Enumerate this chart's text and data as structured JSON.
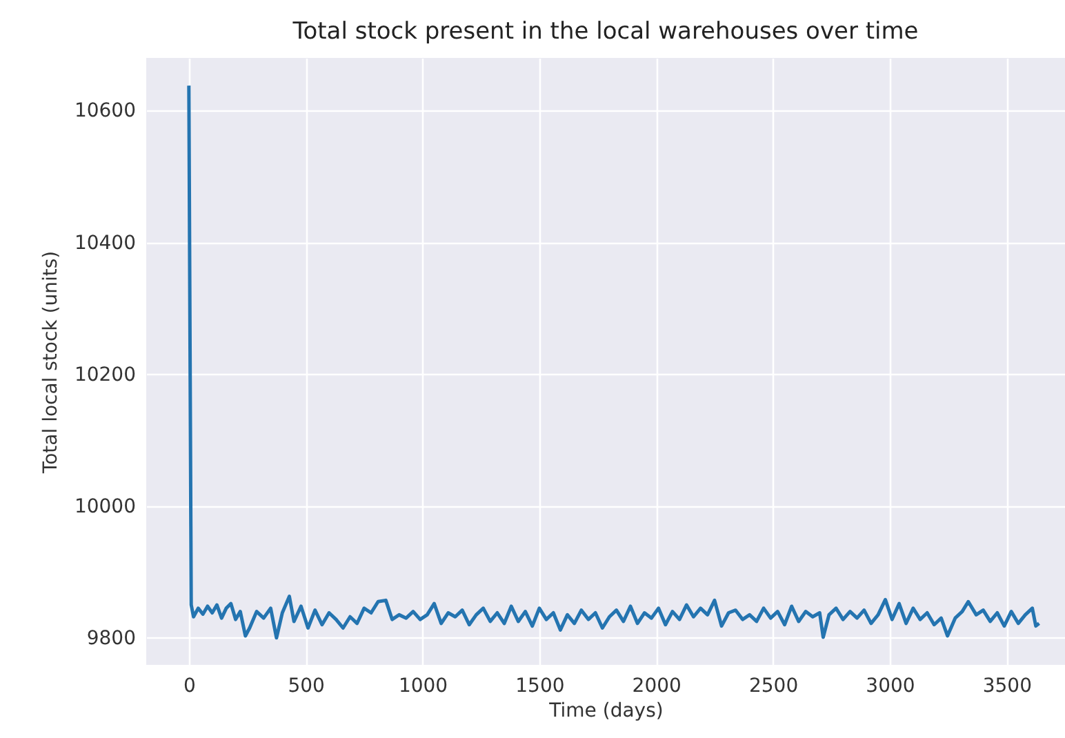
{
  "chart_data": {
    "type": "line",
    "title": "Total stock present in the local warehouses over time",
    "xlabel": "Time (days)",
    "ylabel": "Total local stock (units)",
    "x": [
      0,
      10,
      20,
      40,
      60,
      80,
      100,
      120,
      140,
      160,
      180,
      200,
      220,
      242,
      260,
      290,
      320,
      350,
      375,
      400,
      430,
      450,
      480,
      510,
      540,
      570,
      600,
      630,
      660,
      690,
      720,
      750,
      780,
      810,
      843,
      870,
      900,
      930,
      960,
      990,
      1020,
      1050,
      1080,
      1110,
      1140,
      1170,
      1200,
      1230,
      1260,
      1290,
      1320,
      1350,
      1380,
      1410,
      1440,
      1470,
      1500,
      1530,
      1560,
      1590,
      1620,
      1650,
      1680,
      1710,
      1740,
      1770,
      1800,
      1830,
      1860,
      1890,
      1920,
      1950,
      1980,
      2010,
      2040,
      2070,
      2100,
      2130,
      2160,
      2190,
      2220,
      2250,
      2280,
      2310,
      2340,
      2370,
      2400,
      2430,
      2460,
      2490,
      2520,
      2550,
      2580,
      2610,
      2640,
      2670,
      2700,
      2715,
      2740,
      2770,
      2800,
      2830,
      2860,
      2890,
      2920,
      2950,
      2981,
      3010,
      3040,
      3070,
      3100,
      3130,
      3160,
      3190,
      3220,
      3247,
      3280,
      3310,
      3336,
      3370,
      3400,
      3430,
      3460,
      3490,
      3520,
      3550,
      3580,
      3610,
      3625,
      3639
    ],
    "series": [
      {
        "color": "#2474b0",
        "values": [
          10638,
          9850,
          9832,
          9845,
          9836,
          9848,
          9838,
          9850,
          9830,
          9845,
          9852,
          9828,
          9840,
          9803,
          9815,
          9840,
          9830,
          9845,
          9800,
          9838,
          9863,
          9825,
          9848,
          9815,
          9842,
          9820,
          9838,
          9828,
          9815,
          9832,
          9822,
          9845,
          9838,
          9855,
          9857,
          9828,
          9835,
          9830,
          9840,
          9828,
          9835,
          9852,
          9822,
          9838,
          9832,
          9842,
          9820,
          9835,
          9845,
          9825,
          9838,
          9822,
          9848,
          9825,
          9840,
          9818,
          9845,
          9828,
          9838,
          9812,
          9835,
          9822,
          9842,
          9828,
          9838,
          9815,
          9832,
          9842,
          9825,
          9848,
          9822,
          9838,
          9830,
          9845,
          9820,
          9840,
          9828,
          9850,
          9832,
          9845,
          9835,
          9857,
          9818,
          9838,
          9842,
          9828,
          9835,
          9825,
          9845,
          9830,
          9840,
          9820,
          9848,
          9825,
          9840,
          9832,
          9838,
          9801,
          9835,
          9845,
          9828,
          9840,
          9830,
          9842,
          9822,
          9835,
          9858,
          9828,
          9852,
          9822,
          9845,
          9828,
          9838,
          9820,
          9830,
          9803,
          9830,
          9840,
          9855,
          9835,
          9842,
          9825,
          9838,
          9818,
          9840,
          9822,
          9835,
          9845,
          9818,
          9822
        ]
      }
    ],
    "xlim": [
      -182.5,
      3750
    ],
    "xticks": [
      0,
      500,
      1000,
      1500,
      2000,
      2500,
      3000,
      3500
    ],
    "ylim": [
      9759,
      10680
    ],
    "yticks": [
      9800,
      10000,
      10200,
      10400,
      10600
    ],
    "grid": true,
    "line_style": "solid"
  }
}
